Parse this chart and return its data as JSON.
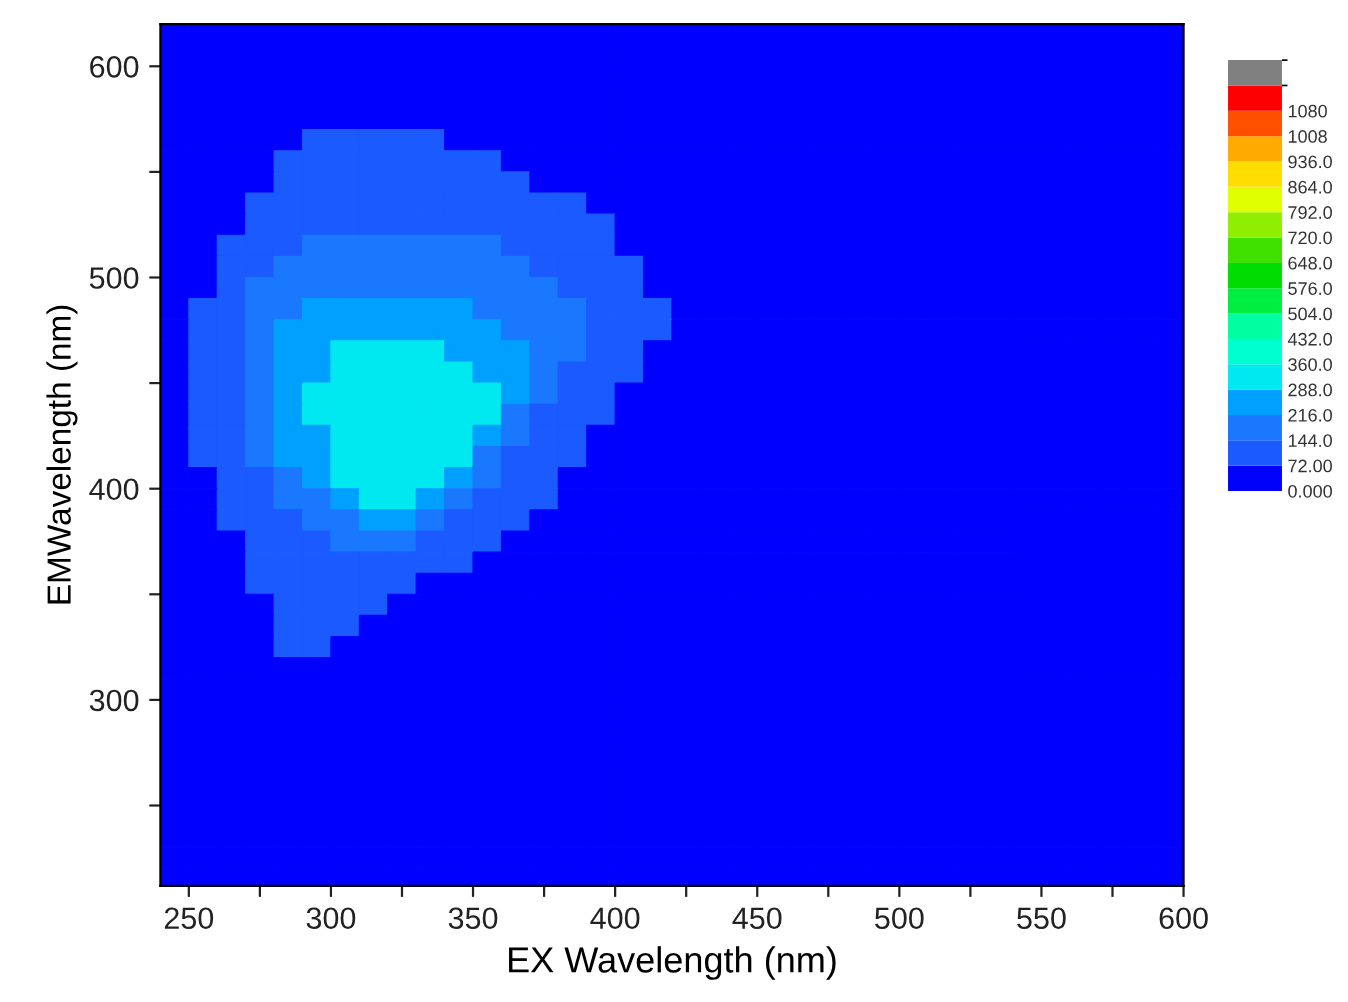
{
  "chart_data": {
    "type": "heatmap",
    "xlabel": "EX Wavelength (nm)",
    "ylabel": "EMWavelength (nm)",
    "x": [
      245,
      255,
      265,
      275,
      285,
      295,
      305,
      315,
      325,
      335,
      345,
      355,
      365,
      375,
      385,
      395,
      405,
      415,
      425,
      435,
      445,
      455,
      465,
      475,
      485,
      495,
      505,
      515,
      525,
      535,
      545,
      555,
      565,
      575,
      585,
      595
    ],
    "y": [
      615,
      605,
      595,
      585,
      575,
      565,
      555,
      545,
      535,
      525,
      515,
      505,
      495,
      485,
      475,
      465,
      455,
      445,
      435,
      425,
      415,
      405,
      395,
      385,
      375,
      365,
      355,
      345,
      335,
      325,
      315,
      305,
      295,
      285,
      275,
      265,
      255,
      245,
      235,
      225,
      215
    ],
    "cells": [
      [
        0,
        0,
        0,
        0,
        0,
        0,
        0,
        0,
        0,
        0,
        0,
        0,
        0,
        0,
        0,
        0,
        0,
        0,
        0,
        0,
        0,
        0,
        0,
        0,
        0,
        0,
        0,
        0,
        0,
        0,
        0,
        0,
        0,
        0,
        0,
        0
      ],
      [
        0,
        0,
        0,
        0,
        0,
        0,
        0,
        0,
        0,
        0,
        0,
        0,
        0,
        0,
        0,
        0,
        0,
        0,
        0,
        0,
        0,
        0,
        0,
        0,
        0,
        0,
        0,
        0,
        0,
        0,
        0,
        0,
        0,
        0,
        0,
        0
      ],
      [
        0,
        0,
        0,
        0,
        0,
        0,
        0,
        0,
        0,
        0,
        0,
        0,
        0,
        0,
        0,
        0,
        0,
        0,
        0,
        0,
        0,
        0,
        0,
        0,
        0,
        0,
        0,
        0,
        0,
        0,
        0,
        0,
        0,
        0,
        0,
        0
      ],
      [
        0,
        0,
        0,
        0,
        0,
        0,
        0,
        0,
        0,
        0,
        0,
        0,
        0,
        0,
        0,
        0,
        0,
        0,
        0,
        0,
        0,
        0,
        0,
        0,
        0,
        0,
        0,
        0,
        0,
        0,
        0,
        0,
        0,
        0,
        0,
        0
      ],
      [
        0,
        0,
        0,
        0,
        0,
        0,
        0,
        0,
        0,
        0,
        0,
        0,
        0,
        0,
        0,
        0,
        0,
        0,
        0,
        0,
        0,
        0,
        0,
        0,
        0,
        0,
        0,
        0,
        0,
        0,
        0,
        0,
        0,
        0,
        0,
        0
      ],
      [
        0,
        0,
        0,
        0,
        0,
        100,
        100,
        100,
        100,
        100,
        0,
        0,
        0,
        0,
        0,
        0,
        0,
        0,
        0,
        0,
        0,
        0,
        0,
        0,
        0,
        0,
        0,
        0,
        0,
        0,
        0,
        0,
        0,
        0,
        0,
        0
      ],
      [
        0,
        0,
        0,
        0,
        100,
        100,
        100,
        100,
        100,
        100,
        100,
        100,
        0,
        0,
        0,
        0,
        0,
        0,
        0,
        0,
        0,
        0,
        0,
        0,
        0,
        0,
        0,
        0,
        0,
        0,
        0,
        0,
        0,
        0,
        0,
        0
      ],
      [
        0,
        0,
        0,
        0,
        100,
        100,
        100,
        100,
        100,
        100,
        100,
        100,
        100,
        0,
        0,
        0,
        0,
        0,
        0,
        0,
        0,
        0,
        0,
        0,
        0,
        0,
        0,
        0,
        0,
        0,
        0,
        0,
        0,
        0,
        0,
        0
      ],
      [
        0,
        0,
        0,
        100,
        100,
        100,
        100,
        100,
        100,
        100,
        100,
        100,
        100,
        100,
        100,
        0,
        0,
        0,
        0,
        0,
        0,
        0,
        0,
        0,
        0,
        0,
        0,
        0,
        0,
        0,
        0,
        0,
        0,
        0,
        0,
        0
      ],
      [
        0,
        0,
        0,
        100,
        100,
        100,
        100,
        100,
        100,
        100,
        100,
        100,
        100,
        100,
        100,
        100,
        0,
        0,
        0,
        0,
        0,
        0,
        0,
        0,
        0,
        0,
        0,
        0,
        0,
        0,
        0,
        0,
        0,
        0,
        0,
        0
      ],
      [
        0,
        0,
        100,
        100,
        100,
        180,
        180,
        180,
        180,
        180,
        180,
        180,
        100,
        100,
        100,
        100,
        0,
        0,
        0,
        0,
        0,
        0,
        0,
        0,
        0,
        0,
        0,
        0,
        0,
        0,
        0,
        0,
        0,
        0,
        0,
        0
      ],
      [
        0,
        0,
        100,
        100,
        180,
        180,
        180,
        180,
        180,
        180,
        180,
        180,
        180,
        100,
        100,
        100,
        100,
        0,
        0,
        0,
        0,
        0,
        0,
        0,
        0,
        0,
        0,
        0,
        0,
        0,
        0,
        0,
        0,
        0,
        0,
        0
      ],
      [
        0,
        0,
        100,
        180,
        180,
        180,
        180,
        180,
        180,
        180,
        180,
        180,
        180,
        180,
        100,
        100,
        100,
        0,
        0,
        0,
        0,
        0,
        0,
        0,
        0,
        0,
        0,
        0,
        0,
        0,
        0,
        0,
        0,
        0,
        0,
        0
      ],
      [
        0,
        100,
        100,
        180,
        180,
        250,
        250,
        250,
        250,
        250,
        250,
        180,
        180,
        180,
        180,
        100,
        100,
        100,
        0,
        0,
        0,
        0,
        0,
        0,
        0,
        0,
        0,
        0,
        0,
        0,
        0,
        0,
        0,
        0,
        0,
        0
      ],
      [
        0,
        100,
        100,
        180,
        250,
        250,
        250,
        250,
        250,
        250,
        250,
        250,
        180,
        180,
        180,
        100,
        100,
        100,
        0,
        0,
        0,
        0,
        0,
        0,
        0,
        0,
        0,
        0,
        0,
        0,
        0,
        0,
        0,
        0,
        0,
        0
      ],
      [
        0,
        100,
        100,
        180,
        250,
        250,
        320,
        320,
        320,
        320,
        250,
        250,
        250,
        180,
        180,
        100,
        100,
        0,
        0,
        0,
        0,
        0,
        0,
        0,
        0,
        0,
        0,
        0,
        0,
        0,
        0,
        0,
        0,
        0,
        0,
        0
      ],
      [
        0,
        100,
        100,
        180,
        250,
        250,
        320,
        320,
        320,
        320,
        320,
        250,
        250,
        180,
        100,
        100,
        100,
        0,
        0,
        0,
        0,
        0,
        0,
        0,
        0,
        0,
        0,
        0,
        0,
        0,
        0,
        0,
        0,
        0,
        0,
        0
      ],
      [
        0,
        100,
        100,
        180,
        250,
        320,
        320,
        320,
        320,
        320,
        320,
        320,
        250,
        180,
        100,
        100,
        0,
        0,
        0,
        0,
        0,
        0,
        0,
        0,
        0,
        0,
        0,
        0,
        0,
        0,
        0,
        0,
        0,
        0,
        0,
        0
      ],
      [
        0,
        100,
        100,
        180,
        250,
        320,
        320,
        320,
        320,
        320,
        320,
        320,
        180,
        100,
        100,
        100,
        0,
        0,
        0,
        0,
        0,
        0,
        0,
        0,
        0,
        0,
        0,
        0,
        0,
        0,
        0,
        0,
        0,
        0,
        0,
        0
      ],
      [
        0,
        100,
        100,
        180,
        250,
        250,
        320,
        320,
        320,
        320,
        320,
        250,
        180,
        100,
        100,
        0,
        0,
        0,
        0,
        0,
        0,
        0,
        0,
        0,
        0,
        0,
        0,
        0,
        0,
        0,
        0,
        0,
        0,
        0,
        0,
        0
      ],
      [
        0,
        100,
        100,
        180,
        250,
        250,
        320,
        320,
        320,
        320,
        320,
        180,
        100,
        100,
        100,
        0,
        0,
        0,
        0,
        0,
        0,
        0,
        0,
        0,
        0,
        0,
        0,
        0,
        0,
        0,
        0,
        0,
        0,
        0,
        0,
        0
      ],
      [
        0,
        0,
        100,
        100,
        180,
        250,
        320,
        320,
        320,
        320,
        250,
        180,
        100,
        100,
        0,
        0,
        0,
        0,
        0,
        0,
        0,
        0,
        0,
        0,
        0,
        0,
        0,
        0,
        0,
        0,
        0,
        0,
        0,
        0,
        0,
        0
      ],
      [
        0,
        0,
        100,
        100,
        180,
        180,
        250,
        320,
        320,
        250,
        180,
        100,
        100,
        100,
        0,
        0,
        0,
        0,
        0,
        0,
        0,
        0,
        0,
        0,
        0,
        0,
        0,
        0,
        0,
        0,
        0,
        0,
        0,
        0,
        0,
        0
      ],
      [
        0,
        0,
        100,
        100,
        100,
        180,
        180,
        250,
        250,
        180,
        100,
        100,
        100,
        0,
        0,
        0,
        0,
        0,
        0,
        0,
        0,
        0,
        0,
        0,
        0,
        0,
        0,
        0,
        0,
        0,
        0,
        0,
        0,
        0,
        0,
        0
      ],
      [
        0,
        0,
        0,
        100,
        100,
        100,
        180,
        180,
        180,
        100,
        100,
        100,
        0,
        0,
        0,
        0,
        0,
        0,
        0,
        0,
        0,
        0,
        0,
        0,
        0,
        0,
        0,
        0,
        0,
        0,
        0,
        0,
        0,
        0,
        0,
        0
      ],
      [
        0,
        0,
        0,
        100,
        100,
        100,
        100,
        100,
        100,
        100,
        100,
        0,
        0,
        0,
        0,
        0,
        0,
        0,
        0,
        0,
        0,
        0,
        0,
        0,
        0,
        0,
        0,
        0,
        0,
        0,
        0,
        0,
        0,
        0,
        0,
        0
      ],
      [
        0,
        0,
        0,
        100,
        100,
        100,
        100,
        100,
        100,
        0,
        0,
        0,
        0,
        0,
        0,
        0,
        0,
        0,
        0,
        0,
        0,
        0,
        0,
        0,
        0,
        0,
        0,
        0,
        0,
        0,
        0,
        0,
        0,
        0,
        0,
        0
      ],
      [
        0,
        0,
        0,
        0,
        100,
        100,
        100,
        100,
        0,
        0,
        0,
        0,
        0,
        0,
        0,
        0,
        0,
        0,
        0,
        0,
        0,
        0,
        0,
        0,
        0,
        0,
        0,
        0,
        0,
        0,
        0,
        0,
        0,
        0,
        0,
        0
      ],
      [
        0,
        0,
        0,
        0,
        100,
        100,
        100,
        0,
        0,
        0,
        0,
        0,
        0,
        0,
        0,
        0,
        0,
        0,
        0,
        0,
        0,
        0,
        0,
        0,
        0,
        0,
        0,
        0,
        0,
        0,
        0,
        0,
        0,
        0,
        0,
        0
      ],
      [
        0,
        0,
        0,
        0,
        100,
        100,
        0,
        0,
        0,
        0,
        0,
        0,
        0,
        0,
        0,
        0,
        0,
        0,
        0,
        0,
        0,
        0,
        0,
        0,
        0,
        0,
        0,
        0,
        0,
        0,
        0,
        0,
        0,
        0,
        0,
        0
      ],
      [
        0,
        0,
        0,
        0,
        0,
        0,
        0,
        0,
        0,
        0,
        0,
        0,
        0,
        0,
        0,
        0,
        0,
        0,
        0,
        0,
        0,
        0,
        0,
        0,
        0,
        0,
        0,
        0,
        0,
        0,
        0,
        0,
        0,
        0,
        0,
        0
      ],
      [
        0,
        0,
        0,
        0,
        0,
        0,
        0,
        0,
        0,
        0,
        0,
        0,
        0,
        0,
        0,
        0,
        0,
        0,
        0,
        0,
        0,
        0,
        0,
        0,
        0,
        0,
        0,
        0,
        0,
        0,
        0,
        0,
        0,
        0,
        0,
        0
      ],
      [
        0,
        0,
        0,
        0,
        0,
        0,
        0,
        0,
        0,
        0,
        0,
        0,
        0,
        0,
        0,
        0,
        0,
        0,
        0,
        0,
        0,
        0,
        0,
        0,
        0,
        0,
        0,
        0,
        0,
        0,
        0,
        0,
        0,
        0,
        0,
        0
      ],
      [
        0,
        0,
        0,
        0,
        0,
        0,
        0,
        0,
        0,
        0,
        0,
        0,
        0,
        0,
        0,
        0,
        0,
        0,
        0,
        0,
        0,
        0,
        0,
        0,
        0,
        0,
        0,
        0,
        0,
        0,
        0,
        0,
        0,
        0,
        0,
        0
      ],
      [
        0,
        0,
        0,
        0,
        0,
        0,
        0,
        0,
        0,
        0,
        0,
        0,
        0,
        0,
        0,
        0,
        0,
        0,
        0,
        0,
        0,
        0,
        0,
        0,
        0,
        0,
        0,
        0,
        0,
        0,
        0,
        0,
        0,
        0,
        0,
        0
      ],
      [
        0,
        0,
        0,
        0,
        0,
        0,
        0,
        0,
        0,
        0,
        0,
        0,
        0,
        0,
        0,
        0,
        0,
        0,
        0,
        0,
        0,
        0,
        0,
        0,
        0,
        0,
        0,
        0,
        0,
        0,
        0,
        0,
        0,
        0,
        0,
        0
      ],
      [
        0,
        0,
        0,
        0,
        0,
        0,
        0,
        0,
        0,
        0,
        0,
        0,
        0,
        0,
        0,
        0,
        0,
        0,
        0,
        0,
        0,
        0,
        0,
        0,
        0,
        0,
        0,
        0,
        0,
        0,
        0,
        0,
        0,
        0,
        0,
        0
      ],
      [
        0,
        0,
        0,
        0,
        0,
        0,
        0,
        0,
        0,
        0,
        0,
        0,
        0,
        0,
        0,
        0,
        0,
        0,
        0,
        0,
        0,
        0,
        0,
        0,
        0,
        0,
        0,
        0,
        0,
        0,
        0,
        0,
        0,
        0,
        0,
        0
      ],
      [
        0,
        0,
        0,
        0,
        0,
        0,
        0,
        0,
        0,
        0,
        0,
        0,
        0,
        0,
        0,
        0,
        0,
        0,
        0,
        0,
        0,
        0,
        0,
        0,
        0,
        0,
        0,
        0,
        0,
        0,
        0,
        0,
        0,
        0,
        0,
        0
      ],
      [
        0,
        0,
        0,
        0,
        0,
        0,
        0,
        0,
        0,
        0,
        0,
        0,
        0,
        0,
        0,
        0,
        0,
        0,
        0,
        0,
        0,
        0,
        0,
        0,
        0,
        0,
        0,
        0,
        0,
        0,
        0,
        0,
        0,
        0,
        0,
        0
      ],
      [
        0,
        0,
        0,
        0,
        0,
        0,
        0,
        0,
        0,
        0,
        0,
        0,
        0,
        0,
        0,
        0,
        0,
        0,
        0,
        0,
        0,
        0,
        0,
        0,
        0,
        0,
        0,
        0,
        0,
        0,
        0,
        0,
        0,
        0,
        0,
        0
      ]
    ],
    "colors": [
      "#0000ff",
      "#1a5aff",
      "#1a78ff",
      "#00a0ff",
      "#00e8f0",
      "#00ffd0",
      "#00ffa0",
      "#00ee40",
      "#00dd00",
      "#40e000",
      "#90ee00",
      "#e0ff00",
      "#ffdd00",
      "#ffaa00",
      "#ff5000",
      "#ff0000",
      "#808080"
    ],
    "clim": [
      0,
      1224
    ],
    "cticks": [
      {
        "value": 0,
        "label": "0.000"
      },
      {
        "value": 72,
        "label": "72.00"
      },
      {
        "value": 144,
        "label": "144.0"
      },
      {
        "value": 216,
        "label": "216.0"
      },
      {
        "value": 288,
        "label": "288.0"
      },
      {
        "value": 360,
        "label": "360.0"
      },
      {
        "value": 432,
        "label": "432.0"
      },
      {
        "value": 504,
        "label": "504.0"
      },
      {
        "value": 576,
        "label": "576.0"
      },
      {
        "value": 648,
        "label": "648.0"
      },
      {
        "value": 720,
        "label": "720.0"
      },
      {
        "value": 792,
        "label": "792.0"
      },
      {
        "value": 864,
        "label": "864.0"
      },
      {
        "value": 936,
        "label": "936.0"
      },
      {
        "value": 1008,
        "label": "1008"
      },
      {
        "value": 1080,
        "label": "1080"
      }
    ],
    "xlim": [
      240,
      600
    ],
    "ylim": [
      212,
      620
    ],
    "xticks": [
      250,
      {
        "value": 275,
        "label": null
      },
      300,
      {
        "value": 325,
        "label": null
      },
      350,
      {
        "value": 375,
        "label": null
      },
      400,
      {
        "value": 425,
        "label": null
      },
      450,
      {
        "value": 475,
        "label": null
      },
      500,
      {
        "value": 525,
        "label": null
      },
      550,
      {
        "value": 575,
        "label": null
      },
      600
    ],
    "yticks": [
      {
        "value": 250,
        "label": null
      },
      300,
      {
        "value": 350,
        "label": null
      },
      400,
      {
        "value": 450,
        "label": null
      },
      500,
      {
        "value": 550,
        "label": null
      },
      600
    ],
    "grid": false
  }
}
